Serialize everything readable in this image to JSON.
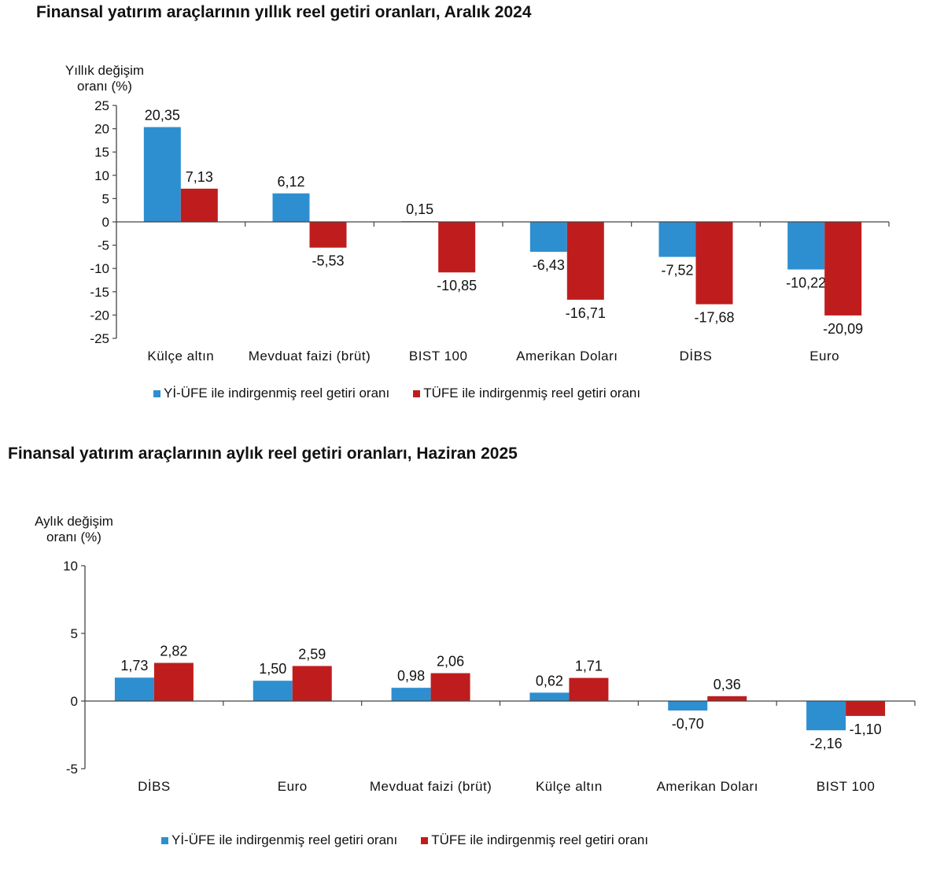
{
  "colors": {
    "series1": "#2e8fd0",
    "series2": "#bf1d1d",
    "axis": "#444444"
  },
  "chart_data": [
    {
      "type": "bar",
      "title": "Finansal yatırım araçlarının yıllık reel getiri oranları, Aralık 2024",
      "ylabel": [
        "Yıllık değişim",
        "oranı (%)"
      ],
      "xlabel": "",
      "ylim": [
        -25,
        25
      ],
      "yticks": [
        25,
        20,
        15,
        10,
        5,
        0,
        -5,
        -10,
        -15,
        -20,
        -25
      ],
      "categories": [
        "Külçe altın",
        "Mevduat faizi (brüt)",
        "BIST 100",
        "Amerikan Doları",
        "DİBS",
        "Euro"
      ],
      "series": [
        {
          "name": "Yİ-ÜFE ile indirgenmiş reel getiri oranı",
          "values": [
            20.35,
            6.12,
            0.15,
            -6.43,
            -7.52,
            -10.22
          ],
          "labels": [
            "20,35",
            "6,12",
            "0,15",
            "-6,43",
            "-7,52",
            "-10,22"
          ]
        },
        {
          "name": "TÜFE ile indirgenmiş reel getiri oranı",
          "values": [
            7.13,
            -5.53,
            -10.85,
            -16.71,
            -17.68,
            -20.09
          ],
          "labels": [
            "7,13",
            "-5,53",
            "-10,85",
            "-16,71",
            "-17,68",
            "-20,09"
          ]
        }
      ],
      "legend": "bottom"
    },
    {
      "type": "bar",
      "title": "Finansal yatırım araçlarının aylık reel getiri oranları, Haziran 2025",
      "ylabel": [
        "Aylık değişim",
        "oranı (%)"
      ],
      "xlabel": "",
      "ylim": [
        -5,
        10
      ],
      "yticks": [
        10,
        5,
        0,
        -5
      ],
      "categories": [
        "DİBS",
        "Euro",
        "Mevduat faizi (brüt)",
        "Külçe altın",
        "Amerikan Doları",
        "BIST 100"
      ],
      "series": [
        {
          "name": "Yİ-ÜFE ile indirgenmiş reel getiri oranı",
          "values": [
            1.73,
            1.5,
            0.98,
            0.62,
            -0.7,
            -2.16
          ],
          "labels": [
            "1,73",
            "1,50",
            "0,98",
            "0,62",
            "-0,70",
            "-2,16"
          ]
        },
        {
          "name": "TÜFE ile indirgenmiş reel getiri oranı",
          "values": [
            2.82,
            2.59,
            2.06,
            1.71,
            0.36,
            -1.1
          ],
          "labels": [
            "2,82",
            "2,59",
            "2,06",
            "1,71",
            "0,36",
            "-1,10"
          ]
        }
      ],
      "legend": "bottom"
    }
  ]
}
